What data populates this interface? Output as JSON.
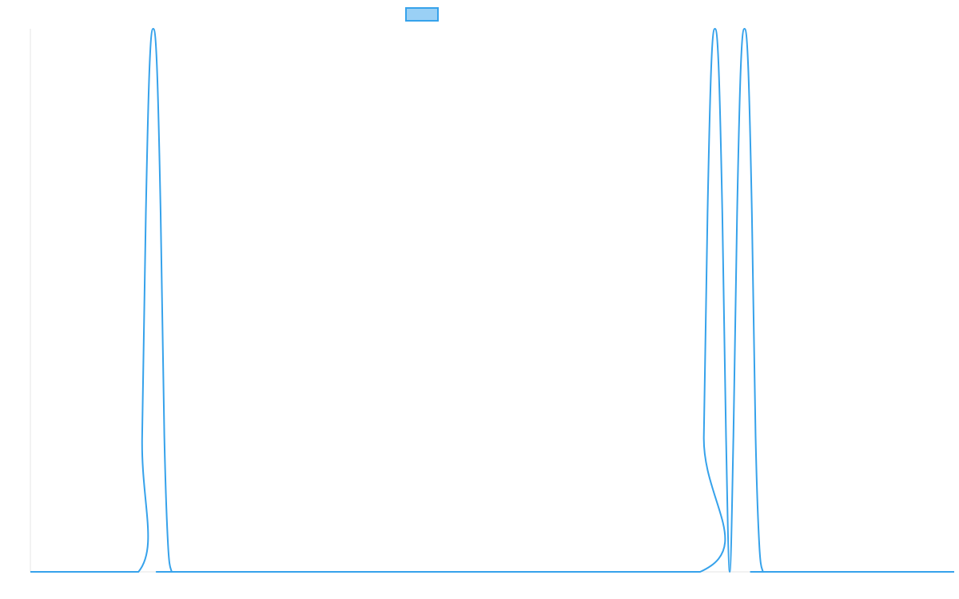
{
  "chart_data": {
    "type": "line",
    "title": "",
    "xlabel": "",
    "ylabel": "",
    "legend": {
      "placement": "top-center",
      "entries": [
        {
          "name": "",
          "swatch_fill": "#9ad0f5",
          "swatch_border": "#36a2eb"
        }
      ]
    },
    "grid": false,
    "xlim": [
      0,
      1000
    ],
    "ylim": [
      0,
      1
    ],
    "line_color": "#36a2eb",
    "axis_color": "#e6e6e6",
    "series": [
      {
        "name": "",
        "x": [
          0,
          117,
          121,
          125,
          129,
          133,
          137,
          141,
          145,
          149,
          153,
          157,
          400,
          725,
          729,
          733,
          737,
          741,
          745,
          749,
          753,
          757,
          761,
          765,
          769,
          773,
          777,
          781,
          785,
          789,
          793,
          797,
          1000
        ],
        "y": [
          0,
          0,
          0.25,
          0.66,
          0.93,
          1.0,
          0.93,
          0.66,
          0.25,
          0.05,
          0.0,
          0,
          0,
          0,
          0.25,
          0.66,
          0.93,
          1.0,
          0.93,
          0.66,
          0.25,
          0.0,
          0.25,
          0.66,
          0.93,
          1.0,
          0.93,
          0.66,
          0.25,
          0.05,
          0.0,
          0,
          0
        ]
      }
    ]
  }
}
